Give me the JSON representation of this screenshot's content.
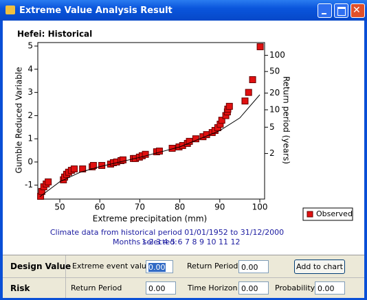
{
  "window": {
    "title": "Extreme Value Analysis Result"
  },
  "chart_data": {
    "type": "scatter",
    "title": "Hefei: Historical",
    "x_label": "Extreme precipitation (mm)",
    "y_label": "Gumble Reduced Variable",
    "y2_label": "Return period (years)",
    "xlim": [
      44.5,
      101.2
    ],
    "ylim": [
      -1.6,
      5.15
    ],
    "xticks": [
      50,
      60,
      70,
      80,
      90,
      100
    ],
    "yticks": [
      -1,
      0,
      1,
      2,
      3,
      4,
      5
    ],
    "y2ticks": [
      2,
      5,
      10,
      20,
      50,
      100
    ],
    "y2scale": "gumbel",
    "legend": "lower right",
    "series": [
      {
        "name": "Observed",
        "color": "#e01010",
        "x": [
          45.2,
          45.5,
          46.0,
          46.6,
          47.1,
          50.9,
          51.2,
          51.7,
          52.2,
          52.9,
          53.6,
          55.7,
          58.1,
          58.4,
          60.5,
          62.7,
          63.4,
          64.2,
          65.3,
          65.8,
          68.4,
          68.9,
          69.9,
          70.6,
          71.4,
          74.2,
          74.9,
          78.1,
          79.8,
          80.7,
          81.9,
          82.4,
          84.0,
          85.8,
          86.7,
          88.1,
          88.8,
          89.5,
          90.1,
          90.5,
          91.5,
          91.9,
          92.0,
          92.4,
          96.3,
          97.2,
          98.2,
          100.1
        ],
        "values": [
          -1.48,
          -1.27,
          -1.07,
          -0.95,
          -0.86,
          -0.77,
          -0.65,
          -0.53,
          -0.44,
          -0.36,
          -0.3,
          -0.3,
          -0.21,
          -0.15,
          -0.15,
          -0.09,
          -0.03,
          0,
          0.06,
          0.09,
          0.15,
          0.15,
          0.21,
          0.27,
          0.33,
          0.44,
          0.47,
          0.59,
          0.65,
          0.71,
          0.8,
          0.89,
          1.0,
          1.09,
          1.18,
          1.27,
          1.36,
          1.48,
          1.63,
          1.8,
          2.0,
          2.16,
          2.28,
          2.4,
          2.63,
          3.0,
          3.55,
          4.97
        ]
      },
      {
        "style": "line",
        "color": "#000000",
        "x": [
          45,
          50,
          55,
          60,
          70,
          80,
          90,
          95,
          100
        ],
        "values": [
          -1.5,
          -0.85,
          -0.45,
          -0.2,
          0.2,
          0.65,
          1.35,
          1.9,
          2.9
        ]
      }
    ]
  },
  "notes": {
    "period": "Climate data from historical period 01/01/1952 to 31/12/2000",
    "months_label": "Months selected:",
    "months": "1 2 3 4 5 6 7 8 9 10 11 12"
  },
  "form": {
    "design_value": {
      "label": "Design Value",
      "event_label": "Extreme event value",
      "event_value": "0.00",
      "period_label": "Return Period",
      "period_value": "0.00",
      "button": "Add to chart"
    },
    "risk": {
      "label": "Risk",
      "period_label": "Return Period",
      "period_value": "0.00",
      "horizon_label": "Time Horizon",
      "horizon_value": "0.00",
      "probability_label": "Probability",
      "probability_value": "0.00"
    }
  }
}
